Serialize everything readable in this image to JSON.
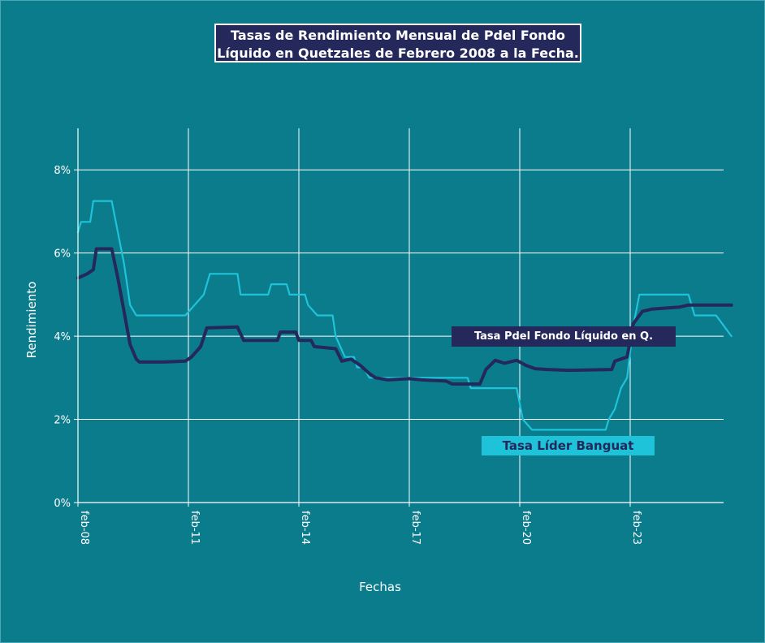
{
  "title_line1": "Tasas de Rendimiento Mensual de Pdel Fondo",
  "title_line2": "Líquido en Quetzales de Febrero 2008 a la Fecha.",
  "colors": {
    "background": "#0b7c8c",
    "fondo_series": "#24285b",
    "banguat_series": "#1fc3d9",
    "grid": "#ffffff"
  },
  "chart_data": {
    "type": "line",
    "title": "Tasas de Rendimiento Mensual de Pdel Fondo Líquido en Quetzales de Febrero 2008 a la Fecha.",
    "xlabel": "Fechas",
    "ylabel": "Rendimiento",
    "x_range": [
      "2008-02",
      "2025-11"
    ],
    "ylim": [
      0,
      9
    ],
    "y_ticks": [
      0,
      2,
      4,
      6,
      8
    ],
    "y_tick_labels": [
      "0%",
      "2%",
      "4%",
      "6%",
      "8%"
    ],
    "x_ticks": [
      "2008-02",
      "2011-02",
      "2014-02",
      "2017-02",
      "2020-02",
      "2023-02"
    ],
    "x_tick_labels": [
      "feb-08",
      "feb-11",
      "feb-14",
      "feb-17",
      "feb-20",
      "feb-23"
    ],
    "grid": true,
    "series": [
      {
        "name": "Tasa Pdel Fondo Líquido en Q.",
        "points": [
          [
            "2008-02",
            5.4
          ],
          [
            "2008-05",
            5.5
          ],
          [
            "2008-07",
            5.6
          ],
          [
            "2008-08",
            6.1
          ],
          [
            "2009-01",
            6.1
          ],
          [
            "2009-03",
            5.4
          ],
          [
            "2009-05",
            4.6
          ],
          [
            "2009-07",
            3.8
          ],
          [
            "2009-09",
            3.45
          ],
          [
            "2009-10",
            3.38
          ],
          [
            "2010-06",
            3.38
          ],
          [
            "2011-01",
            3.4
          ],
          [
            "2011-03",
            3.5
          ],
          [
            "2011-06",
            3.75
          ],
          [
            "2011-08",
            4.2
          ],
          [
            "2012-06",
            4.22
          ],
          [
            "2012-08",
            3.9
          ],
          [
            "2013-07",
            3.9
          ],
          [
            "2013-08",
            4.1
          ],
          [
            "2014-01",
            4.1
          ],
          [
            "2014-02",
            3.9
          ],
          [
            "2014-06",
            3.9
          ],
          [
            "2014-07",
            3.75
          ],
          [
            "2015-02",
            3.7
          ],
          [
            "2015-04",
            3.4
          ],
          [
            "2015-07",
            3.45
          ],
          [
            "2015-10",
            3.3
          ],
          [
            "2016-01",
            3.1
          ],
          [
            "2016-03",
            3.0
          ],
          [
            "2016-07",
            2.95
          ],
          [
            "2017-02",
            2.98
          ],
          [
            "2017-06",
            2.95
          ],
          [
            "2018-02",
            2.92
          ],
          [
            "2018-04",
            2.85
          ],
          [
            "2019-01",
            2.85
          ],
          [
            "2019-03",
            3.2
          ],
          [
            "2019-06",
            3.42
          ],
          [
            "2019-09",
            3.35
          ],
          [
            "2020-01",
            3.42
          ],
          [
            "2020-04",
            3.3
          ],
          [
            "2020-07",
            3.22
          ],
          [
            "2020-11",
            3.2
          ],
          [
            "2021-06",
            3.18
          ],
          [
            "2022-08",
            3.2
          ],
          [
            "2022-09",
            3.4
          ],
          [
            "2023-01",
            3.5
          ],
          [
            "2023-03",
            4.3
          ],
          [
            "2023-06",
            4.6
          ],
          [
            "2023-09",
            4.65
          ],
          [
            "2024-06",
            4.7
          ],
          [
            "2024-09",
            4.75
          ],
          [
            "2025-11",
            4.75
          ]
        ]
      },
      {
        "name": "Tasa Líder Banguat",
        "points": [
          [
            "2008-02",
            6.5
          ],
          [
            "2008-03",
            6.75
          ],
          [
            "2008-06",
            6.75
          ],
          [
            "2008-07",
            7.25
          ],
          [
            "2009-01",
            7.25
          ],
          [
            "2009-03",
            6.5
          ],
          [
            "2009-05",
            5.75
          ],
          [
            "2009-07",
            4.75
          ],
          [
            "2009-09",
            4.5
          ],
          [
            "2011-01",
            4.5
          ],
          [
            "2011-04",
            4.75
          ],
          [
            "2011-07",
            5.0
          ],
          [
            "2011-09",
            5.5
          ],
          [
            "2012-06",
            5.5
          ],
          [
            "2012-07",
            5.0
          ],
          [
            "2013-04",
            5.0
          ],
          [
            "2013-05",
            5.25
          ],
          [
            "2013-10",
            5.25
          ],
          [
            "2013-11",
            5.0
          ],
          [
            "2014-04",
            5.0
          ],
          [
            "2014-05",
            4.75
          ],
          [
            "2014-08",
            4.5
          ],
          [
            "2015-01",
            4.5
          ],
          [
            "2015-02",
            4.0
          ],
          [
            "2015-05",
            3.5
          ],
          [
            "2015-08",
            3.5
          ],
          [
            "2015-09",
            3.25
          ],
          [
            "2015-11",
            3.25
          ],
          [
            "2016-01",
            3.0
          ],
          [
            "2018-09",
            3.0
          ],
          [
            "2018-10",
            2.75
          ],
          [
            "2020-01",
            2.75
          ],
          [
            "2020-03",
            2.0
          ],
          [
            "2020-06",
            1.75
          ],
          [
            "2022-06",
            1.75
          ],
          [
            "2022-07",
            2.0
          ],
          [
            "2022-09",
            2.25
          ],
          [
            "2022-11",
            2.75
          ],
          [
            "2023-01",
            3.0
          ],
          [
            "2023-03",
            4.25
          ],
          [
            "2023-05",
            5.0
          ],
          [
            "2024-09",
            5.0
          ],
          [
            "2024-11",
            4.5
          ],
          [
            "2025-06",
            4.5
          ],
          [
            "2025-11",
            4.0
          ]
        ]
      }
    ]
  }
}
